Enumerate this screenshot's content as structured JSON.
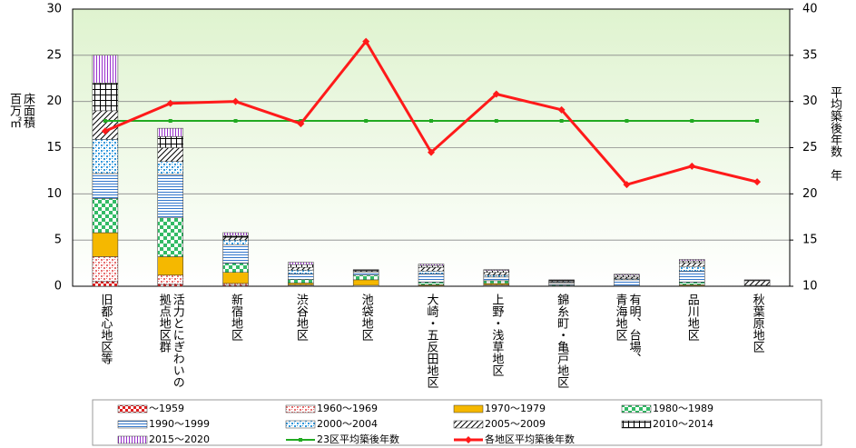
{
  "chart_data": {
    "type": "bar",
    "stacked": true,
    "categories": [
      "旧都心地区等",
      "活力とにぎわいの\n拠点地区群",
      "新宿地区",
      "渋谷地区",
      "池袋地区",
      "大崎・五反田地区",
      "上野・浅草地区",
      "錦糸町・亀戸地区",
      "有明、台場、\n青海地区",
      "品川地区",
      "秋葉原地区"
    ],
    "ylabel": "床面積　百万㎡",
    "y2label": "平均築後年数　年",
    "ylim": [
      0,
      30
    ],
    "yticks": [
      0,
      5,
      10,
      15,
      20,
      25,
      30
    ],
    "y2lim": [
      10,
      40
    ],
    "y2ticks": [
      10,
      15,
      20,
      25,
      30,
      35,
      40
    ],
    "grid": true,
    "series": [
      {
        "name": "～1959",
        "color": "#e02020",
        "pattern": "fine-check",
        "values": [
          0.5,
          0.2,
          0.1,
          0.05,
          0,
          0,
          0.05,
          0,
          0,
          0,
          0
        ]
      },
      {
        "name": "1960～1969",
        "color": "#e87070",
        "pattern": "dots",
        "values": [
          2.7,
          1.0,
          0.2,
          0.1,
          0.1,
          0.05,
          0.1,
          0,
          0,
          0.05,
          0
        ]
      },
      {
        "name": "1970～1979",
        "color": "#f5b800",
        "pattern": "solid",
        "values": [
          2.6,
          2.0,
          1.2,
          0.2,
          0.6,
          0.1,
          0.15,
          0.05,
          0,
          0.1,
          0
        ]
      },
      {
        "name": "1980～1989",
        "color": "#33bb66",
        "pattern": "check",
        "values": [
          3.7,
          4.2,
          1.0,
          0.4,
          0.5,
          0.3,
          0.3,
          0.1,
          0.05,
          0.3,
          0
        ]
      },
      {
        "name": "1990～1999",
        "color": "#3377cc",
        "pattern": "hlines",
        "values": [
          2.7,
          4.7,
          2.0,
          0.6,
          0.3,
          0.9,
          0.4,
          0.2,
          0.65,
          1.2,
          0.05
        ]
      },
      {
        "name": "2000～2004",
        "color": "#3399dd",
        "pattern": "dots",
        "values": [
          3.7,
          1.4,
          0.5,
          0.4,
          0.1,
          0.3,
          0.2,
          0.1,
          0.1,
          0.5,
          0.05
        ]
      },
      {
        "name": "2005～2009",
        "color": "#000000",
        "pattern": "diag",
        "values": [
          3.1,
          1.5,
          0.3,
          0.3,
          0.1,
          0.4,
          0.3,
          0.1,
          0.2,
          0.4,
          0.5
        ]
      },
      {
        "name": "2010～2014",
        "color": "#000000",
        "pattern": "grid",
        "values": [
          3.0,
          1.2,
          0.2,
          0.3,
          0.05,
          0.2,
          0.2,
          0.1,
          0.2,
          0.2,
          0.05
        ]
      },
      {
        "name": "2015～2020",
        "color": "#9933cc",
        "pattern": "vlines",
        "values": [
          3.0,
          0.9,
          0.3,
          0.25,
          0.05,
          0.15,
          0.1,
          0.05,
          0.1,
          0.15,
          0.05
        ]
      },
      {
        "name": "23区平均築後年数",
        "type": "line",
        "axis": "y2",
        "color": "#22aa22",
        "marker": "square",
        "values": [
          27.9,
          27.9,
          27.9,
          27.9,
          27.9,
          27.9,
          27.9,
          27.9,
          27.9,
          27.9,
          27.9
        ]
      },
      {
        "name": "各地区平均築後年数",
        "type": "line",
        "axis": "y2",
        "color": "#ff1a1a",
        "marker": "diamond",
        "values": [
          26.8,
          29.8,
          30.0,
          27.6,
          36.5,
          24.5,
          30.8,
          29.1,
          21.0,
          23.0,
          21.3
        ]
      }
    ]
  }
}
